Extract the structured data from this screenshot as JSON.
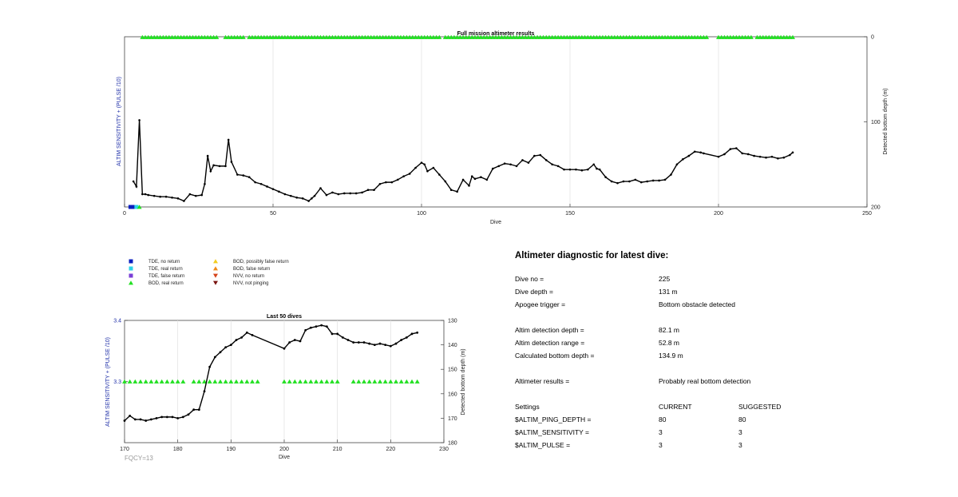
{
  "chart_data": [
    {
      "type": "line",
      "title": "Full mission altimeter results",
      "xlabel": "Dive",
      "ylabel_left": "ALTIM SENSITIVITY + (PULSE /10)",
      "ylabel_right": "Detected bottom depth (m)",
      "xlim": [
        0,
        250
      ],
      "xticks": [
        "0",
        "50",
        "100",
        "150",
        "200",
        "250"
      ],
      "ylim_right": [
        0,
        200
      ],
      "yticks_right": [
        "0",
        "100",
        "200"
      ],
      "grid": "vertical",
      "series": [
        {
          "name": "Detected bottom depth",
          "x": [
            3,
            4,
            5,
            6,
            7,
            8,
            10,
            12,
            14,
            16,
            18,
            20,
            22,
            24,
            26,
            27,
            28,
            29,
            30,
            32,
            34,
            35,
            36,
            38,
            40,
            42,
            44,
            46,
            48,
            50,
            52,
            54,
            56,
            58,
            60,
            62,
            63,
            64,
            66,
            68,
            70,
            72,
            74,
            76,
            78,
            80,
            82,
            84,
            86,
            88,
            90,
            92,
            94,
            96,
            98,
            100,
            101,
            102,
            104,
            106,
            108,
            110,
            112,
            114,
            116,
            117,
            118,
            120,
            122,
            124,
            126,
            128,
            130,
            132,
            134,
            136,
            138,
            140,
            142,
            144,
            146,
            148,
            150,
            152,
            154,
            156,
            158,
            159,
            160,
            162,
            164,
            166,
            168,
            170,
            172,
            174,
            176,
            178,
            180,
            182,
            184,
            186,
            188,
            190,
            192,
            194,
            195,
            200,
            202,
            204,
            206,
            208,
            210,
            212,
            214,
            216,
            218,
            220,
            222,
            224,
            225
          ],
          "y": [
            170,
            176,
            98,
            185,
            185,
            186,
            187,
            188,
            188,
            189,
            190,
            193,
            185,
            187,
            186,
            173,
            140,
            158,
            151,
            152,
            152,
            121,
            147,
            162,
            163,
            165,
            171,
            173,
            176,
            179,
            182,
            185,
            187,
            189,
            190,
            193,
            190,
            187,
            178,
            186,
            183,
            185,
            184,
            184,
            184,
            183,
            180,
            180,
            173,
            171,
            171,
            168,
            164,
            161,
            154,
            148,
            150,
            158,
            154,
            162,
            170,
            180,
            182,
            168,
            175,
            164,
            167,
            165,
            168,
            155,
            152,
            149,
            150,
            152,
            145,
            148,
            140,
            139,
            145,
            150,
            152,
            156,
            156,
            156,
            157,
            156,
            150,
            155,
            156,
            165,
            170,
            172,
            170,
            170,
            168,
            171,
            170,
            169,
            169,
            168,
            162,
            150,
            144,
            140,
            135,
            136,
            137,
            141,
            138,
            132,
            131,
            137,
            138,
            140,
            141,
            142,
            141,
            143,
            142,
            139,
            136
          ]
        }
      ],
      "markers": {
        "symbol": "BOD, real return",
        "color": "#22e022",
        "x": [
          6,
          7,
          8,
          9,
          10,
          11,
          12,
          13,
          14,
          15,
          16,
          17,
          18,
          19,
          20,
          21,
          22,
          23,
          24,
          25,
          26,
          27,
          28,
          29,
          30,
          31,
          34,
          35,
          36,
          37,
          38,
          39,
          40,
          42,
          43,
          44,
          45,
          46,
          47,
          48,
          49,
          50,
          51,
          52,
          53,
          54,
          55,
          56,
          57,
          58,
          59,
          60,
          61,
          62,
          63,
          64,
          65,
          66,
          67,
          68,
          69,
          70,
          71,
          72,
          73,
          74,
          75,
          76,
          77,
          78,
          79,
          80,
          81,
          82,
          83,
          84,
          85,
          86,
          87,
          88,
          89,
          90,
          91,
          92,
          93,
          94,
          95,
          96,
          97,
          98,
          99,
          100,
          101,
          102,
          103,
          104,
          105,
          106,
          108,
          109,
          110,
          111,
          112,
          113,
          114,
          115,
          116,
          117,
          118,
          119,
          120,
          121,
          122,
          123,
          124,
          125,
          126,
          127,
          128,
          129,
          130,
          131,
          132,
          133,
          134,
          135,
          136,
          137,
          138,
          139,
          140,
          141,
          142,
          143,
          144,
          145,
          146,
          147,
          148,
          149,
          150,
          151,
          152,
          153,
          154,
          155,
          156,
          157,
          158,
          159,
          160,
          161,
          162,
          163,
          164,
          165,
          166,
          167,
          168,
          169,
          170,
          171,
          172,
          173,
          174,
          175,
          176,
          177,
          178,
          179,
          180,
          181,
          182,
          183,
          184,
          185,
          186,
          187,
          188,
          189,
          190,
          191,
          192,
          193,
          194,
          195,
          196,
          200,
          201,
          202,
          203,
          204,
          205,
          206,
          207,
          208,
          209,
          210,
          211,
          213,
          214,
          215,
          216,
          217,
          218,
          219,
          220,
          221,
          222,
          223,
          224,
          225
        ]
      },
      "bottom_markers": [
        {
          "x": 2,
          "symbol": "TDE, no return",
          "color": "#0b1fbf"
        },
        {
          "x": 3,
          "symbol": "TDE, no return",
          "color": "#0b1fbf"
        },
        {
          "x": 4,
          "symbol": "TDE, real return",
          "color": "#2ed3e8"
        },
        {
          "x": 5,
          "symbol": "BOD, real return",
          "color": "#22e022"
        }
      ]
    },
    {
      "type": "line",
      "title": "Last 50 dives",
      "xlabel": "Dive",
      "ylabel_left": "ALTIM SENSITIVITY + (PULSE /10)",
      "ylabel_right": "Detected bottom depth (m)",
      "xlim": [
        170,
        230
      ],
      "xticks": [
        "170",
        "180",
        "190",
        "200",
        "210",
        "220",
        "230"
      ],
      "ylim_left": [
        3.2,
        3.4
      ],
      "yticks_left": [
        "3.4",
        "3.3"
      ],
      "ylim_right": [
        130,
        180
      ],
      "yticks_right": [
        "130",
        "140",
        "150",
        "160",
        "170",
        "180"
      ],
      "grid": "vertical",
      "series": [
        {
          "name": "Detected bottom depth",
          "x": [
            170,
            171,
            172,
            173,
            174,
            175,
            176,
            177,
            178,
            179,
            180,
            181,
            182,
            183,
            184,
            185,
            186,
            187,
            188,
            189,
            190,
            191,
            192,
            193,
            194,
            200,
            201,
            202,
            203,
            204,
            205,
            206,
            207,
            208,
            209,
            210,
            211,
            212,
            213,
            214,
            215,
            216,
            217,
            218,
            219,
            220,
            221,
            222,
            223,
            224,
            225
          ],
          "y": [
            171,
            169,
            170.5,
            170.5,
            171,
            170.5,
            170,
            169.5,
            169.5,
            169.5,
            170,
            169.5,
            168.5,
            166.5,
            166.5,
            159,
            149,
            145,
            143,
            141,
            140,
            138,
            137,
            135,
            136,
            141.5,
            139,
            138,
            138.5,
            134,
            133,
            132.5,
            132,
            132.5,
            135.5,
            135.5,
            137,
            138,
            139,
            139,
            139,
            139.5,
            140,
            139.5,
            140,
            140.5,
            139.5,
            138,
            137,
            135.5,
            135
          ]
        }
      ],
      "markers": {
        "symbol": "BOD, real return",
        "color": "#22e022",
        "level": 3.3,
        "x": [
          170,
          171,
          172,
          173,
          174,
          175,
          176,
          177,
          178,
          179,
          180,
          181,
          183,
          184,
          185,
          186,
          187,
          188,
          189,
          190,
          191,
          192,
          193,
          194,
          195,
          200,
          201,
          202,
          203,
          204,
          205,
          206,
          207,
          208,
          209,
          210,
          213,
          214,
          215,
          216,
          217,
          218,
          219,
          220,
          221,
          222,
          223,
          224,
          225
        ]
      }
    }
  ],
  "legend": {
    "items": [
      {
        "label": "TDE, no return",
        "symbol": "square",
        "color": "#0b1fbf"
      },
      {
        "label": "TDE, real return",
        "symbol": "square",
        "color": "#2ed3e8"
      },
      {
        "label": "TDE, false return",
        "symbol": "square",
        "color": "#7a3fd6"
      },
      {
        "label": "BOD, real return",
        "symbol": "triangle-up",
        "color": "#22e022"
      },
      {
        "label": "BOD, possibly false return",
        "symbol": "triangle-up",
        "color": "#f2cc1f"
      },
      {
        "label": "BOD, false return",
        "symbol": "triangle-up",
        "color": "#f08a1a"
      },
      {
        "label": "NVV, no return",
        "symbol": "triangle-down",
        "color": "#d5431a"
      },
      {
        "label": "NVV, not pinging",
        "symbol": "triangle-down",
        "color": "#7a1410"
      }
    ]
  },
  "fqcy": "FQCY=13",
  "diagnostic": {
    "heading": "Altimeter diagnostic for latest dive:",
    "dive_no_label": "Dive no =",
    "dive_no": "225",
    "dive_depth_label": "Dive depth =",
    "dive_depth": "131 m",
    "apogee_label": "Apogee trigger =",
    "apogee": "Bottom obstacle detected",
    "altim_depth_label": "Altim detection depth =",
    "altim_depth": "82.1 m",
    "altim_range_label": "Altim detection range =",
    "altim_range": "52.8 m",
    "calc_bottom_label": "Calculated bottom depth =",
    "calc_bottom": "134.9 m",
    "results_label": "Altimeter results =",
    "results": "Probably real bottom detection",
    "settings_header": "Settings",
    "current_header": "CURRENT",
    "suggested_header": "SUGGESTED",
    "settings": [
      {
        "name": "$ALTIM_PING_DEPTH =",
        "current": "80",
        "suggested": "80"
      },
      {
        "name": "$ALTIM_SENSITIVITY =",
        "current": "3",
        "suggested": "3"
      },
      {
        "name": "$ALTIM_PULSE =",
        "current": "3",
        "suggested": "3"
      }
    ]
  }
}
